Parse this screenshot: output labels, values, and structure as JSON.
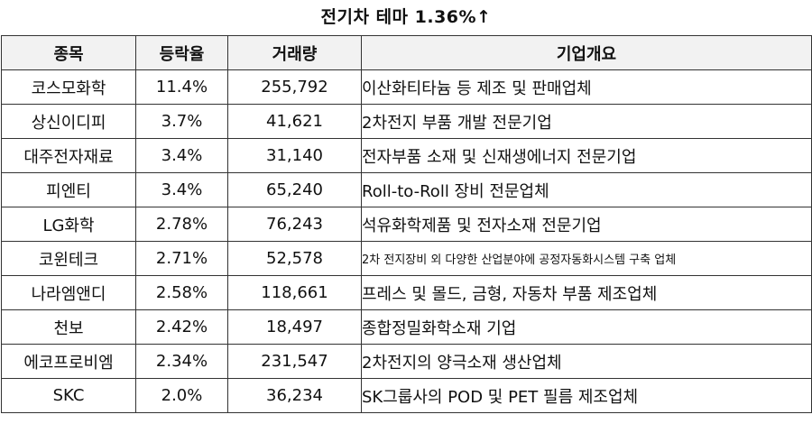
{
  "title": "전기차 테마 1.36%↑",
  "columns": {
    "name": "종목",
    "rate": "등락율",
    "volume": "거래량",
    "description": "기업개요"
  },
  "rows": [
    {
      "name": "코스모화학",
      "rate": "11.4%",
      "volume": "255,792",
      "description": "이산화티타늄 등 제조 및 판매업체"
    },
    {
      "name": "상신이디피",
      "rate": "3.7%",
      "volume": "41,621",
      "description": "2차전지 부품 개발 전문기업"
    },
    {
      "name": "대주전자재료",
      "rate": "3.4%",
      "volume": "31,140",
      "description": "전자부품 소재 및 신재생에너지 전문기업"
    },
    {
      "name": "피엔티",
      "rate": "3.4%",
      "volume": "65,240",
      "description": "Roll-to-Roll 장비 전문업체"
    },
    {
      "name": "LG화학",
      "rate": "2.78%",
      "volume": "76,243",
      "description": "석유화학제품 및 전자소재 전문기업"
    },
    {
      "name": "코윈테크",
      "rate": "2.71%",
      "volume": "52,578",
      "description": "2차 전지장비 외 다양한 산업분야에 공정자동화시스템 구축 업체"
    },
    {
      "name": "나라엠앤디",
      "rate": "2.58%",
      "volume": "118,661",
      "description": "프레스 및 몰드, 금형, 자동차 부품 제조업체"
    },
    {
      "name": "천보",
      "rate": "2.42%",
      "volume": "18,497",
      "description": "종합정밀화학소재 기업"
    },
    {
      "name": "에코프로비엠",
      "rate": "2.34%",
      "volume": "231,547",
      "description": "2차전지의 양극소재 생산업체"
    },
    {
      "name": "SKC",
      "rate": "2.0%",
      "volume": "36,234",
      "description": "SK그룹사의 POD 및 PET 필름 제조업체"
    }
  ]
}
